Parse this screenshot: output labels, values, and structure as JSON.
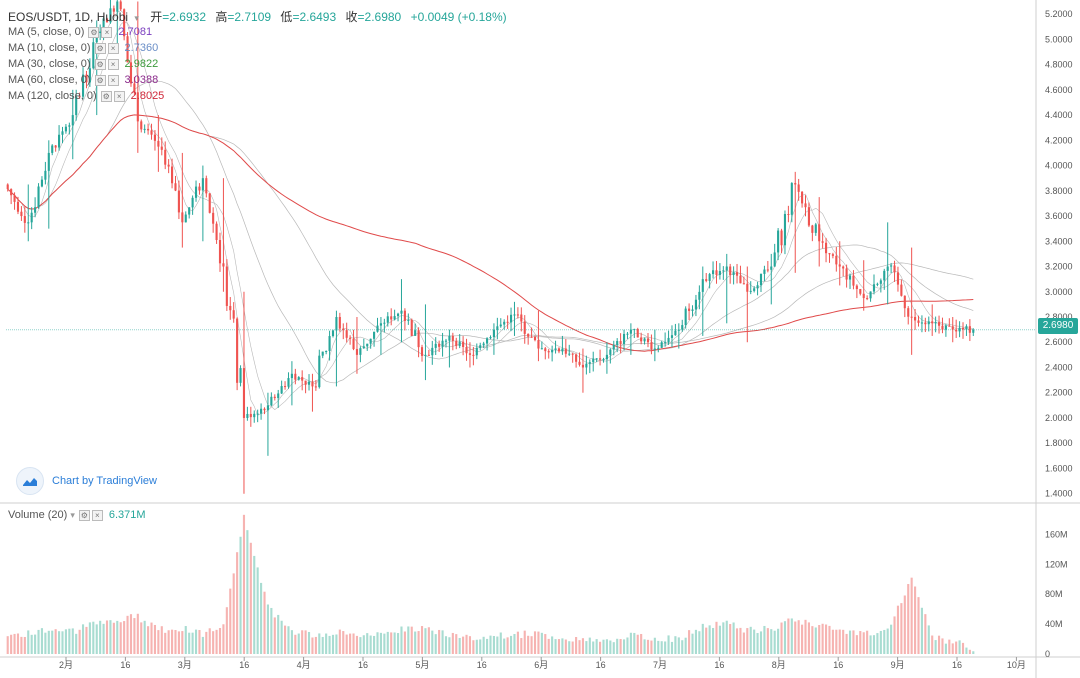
{
  "header": {
    "symbol": "EOS/USDT, 1D, Huobi",
    "open_label": "开",
    "open": "=2.6932",
    "high_label": "高",
    "high": "=2.7109",
    "low_label": "低",
    "low": "=2.6493",
    "close_label": "收",
    "close": "=2.6980",
    "change": "+0.0049 (+0.18%)"
  },
  "indicators": [
    {
      "label": "MA (5, close, 0)",
      "value": "2.7081",
      "color": "#7b3fbf"
    },
    {
      "label": "MA (10, close, 0)",
      "value": "2.7360",
      "color": "#6a8ec7"
    },
    {
      "label": "MA (30, close, 0)",
      "value": "2.9822",
      "color": "#3d9a3d"
    },
    {
      "label": "MA (60, close, 0)",
      "value": "3.0388",
      "color": "#8b2a8b"
    },
    {
      "label": "MA (120, close, 0)",
      "value": "2.8025",
      "color": "#d0283a"
    }
  ],
  "volume_legend": {
    "label": "Volume (20)",
    "value": "6.371M"
  },
  "watermark": "Chart by TradingView",
  "last_price": "2.6980",
  "colors": {
    "up": "#26a69a",
    "down": "#ef5350",
    "vol_up": "#a8dcd1",
    "vol_down": "#f6b3b1",
    "ma120": "#e04a4a",
    "ma_gray": "#b8b8b8"
  },
  "chart_data": {
    "type": "candlestick",
    "price_axis": {
      "ticks": [
        "5.2000",
        "5.0000",
        "4.8000",
        "4.6000",
        "4.4000",
        "4.2000",
        "4.0000",
        "3.8000",
        "3.6000",
        "3.4000",
        "3.2000",
        "3.0000",
        "2.8000",
        "2.6000",
        "2.4000",
        "2.2000",
        "2.0000",
        "1.8000",
        "1.6000",
        "1.4000"
      ],
      "range": [
        1.35,
        5.28
      ]
    },
    "volume_axis": {
      "ticks": [
        "160M",
        "120M",
        "80M",
        "40M",
        "0"
      ],
      "range": [
        0,
        190
      ]
    },
    "x_axis": {
      "ticks": [
        "2月",
        "16",
        "3月",
        "16",
        "4月",
        "16",
        "5月",
        "16",
        "6月",
        "16",
        "7月",
        "16",
        "8月",
        "16",
        "9月",
        "16",
        "10月"
      ]
    },
    "anchors": [
      {
        "close": 3.85,
        "high": 4.05,
        "low": 3.6,
        "vol": 22
      },
      {
        "close": 3.55,
        "high": 3.85,
        "low": 3.4,
        "vol": 25
      },
      {
        "close": 4.1,
        "high": 4.2,
        "low": 3.5,
        "vol": 30
      },
      {
        "close": 4.4,
        "high": 4.6,
        "low": 4.05,
        "vol": 28
      },
      {
        "close": 5.05,
        "high": 5.15,
        "low": 4.4,
        "vol": 40
      },
      {
        "close": 5.3,
        "high": 5.45,
        "low": 4.9,
        "vol": 45
      },
      {
        "close": 4.35,
        "high": 5.3,
        "low": 4.1,
        "vol": 48
      },
      {
        "close": 4.15,
        "high": 4.4,
        "low": 3.95,
        "vol": 30
      },
      {
        "close": 3.55,
        "high": 4.1,
        "low": 3.35,
        "vol": 32
      },
      {
        "close": 3.9,
        "high": 4.0,
        "low": 3.4,
        "vol": 25
      },
      {
        "close": 3.2,
        "high": 3.9,
        "low": 3.0,
        "vol": 40
      },
      {
        "close": 2.0,
        "high": 3.0,
        "low": 1.4,
        "vol": 180
      },
      {
        "close": 2.1,
        "high": 2.2,
        "low": 1.7,
        "vol": 60
      },
      {
        "close": 2.35,
        "high": 2.45,
        "low": 2.1,
        "vol": 30
      },
      {
        "close": 2.25,
        "high": 2.35,
        "low": 2.05,
        "vol": 22
      },
      {
        "close": 2.8,
        "high": 2.85,
        "low": 2.25,
        "vol": 28
      },
      {
        "close": 2.5,
        "high": 2.8,
        "low": 2.35,
        "vol": 25
      },
      {
        "close": 2.75,
        "high": 2.8,
        "low": 2.5,
        "vol": 22
      },
      {
        "close": 2.85,
        "high": 3.1,
        "low": 2.6,
        "vol": 30
      },
      {
        "close": 2.5,
        "high": 2.9,
        "low": 2.3,
        "vol": 35
      },
      {
        "close": 2.65,
        "high": 2.7,
        "low": 2.4,
        "vol": 22
      },
      {
        "close": 2.5,
        "high": 2.6,
        "low": 2.4,
        "vol": 20
      },
      {
        "close": 2.7,
        "high": 2.75,
        "low": 2.5,
        "vol": 22
      },
      {
        "close": 2.82,
        "high": 2.92,
        "low": 2.65,
        "vol": 24
      },
      {
        "close": 2.55,
        "high": 2.85,
        "low": 2.45,
        "vol": 25
      },
      {
        "close": 2.55,
        "high": 2.65,
        "low": 2.5,
        "vol": 18
      },
      {
        "close": 2.4,
        "high": 2.55,
        "low": 2.2,
        "vol": 20
      },
      {
        "close": 2.5,
        "high": 2.6,
        "low": 2.35,
        "vol": 15
      },
      {
        "close": 2.7,
        "high": 2.75,
        "low": 2.5,
        "vol": 22
      },
      {
        "close": 2.55,
        "high": 2.7,
        "low": 2.45,
        "vol": 18
      },
      {
        "close": 2.7,
        "high": 2.75,
        "low": 2.55,
        "vol": 18
      },
      {
        "close": 3.1,
        "high": 3.2,
        "low": 2.65,
        "vol": 35
      },
      {
        "close": 3.2,
        "high": 3.3,
        "low": 2.75,
        "vol": 40
      },
      {
        "close": 3.0,
        "high": 3.2,
        "low": 2.6,
        "vol": 30
      },
      {
        "close": 3.2,
        "high": 3.3,
        "low": 2.9,
        "vol": 32
      },
      {
        "close": 3.85,
        "high": 3.95,
        "low": 3.15,
        "vol": 45
      },
      {
        "close": 3.4,
        "high": 3.75,
        "low": 3.2,
        "vol": 35
      },
      {
        "close": 3.2,
        "high": 3.4,
        "low": 3.05,
        "vol": 28
      },
      {
        "close": 2.95,
        "high": 3.25,
        "low": 2.85,
        "vol": 25
      },
      {
        "close": 3.2,
        "high": 3.55,
        "low": 2.9,
        "vol": 30
      },
      {
        "close": 2.8,
        "high": 3.35,
        "low": 2.5,
        "vol": 100
      },
      {
        "close": 2.75,
        "high": 2.9,
        "low": 2.65,
        "vol": 20
      },
      {
        "close": 2.7,
        "high": 2.8,
        "low": 2.6,
        "vol": 15
      },
      {
        "close": 2.698,
        "high": 2.7109,
        "low": 2.6493,
        "vol": 6
      }
    ]
  }
}
